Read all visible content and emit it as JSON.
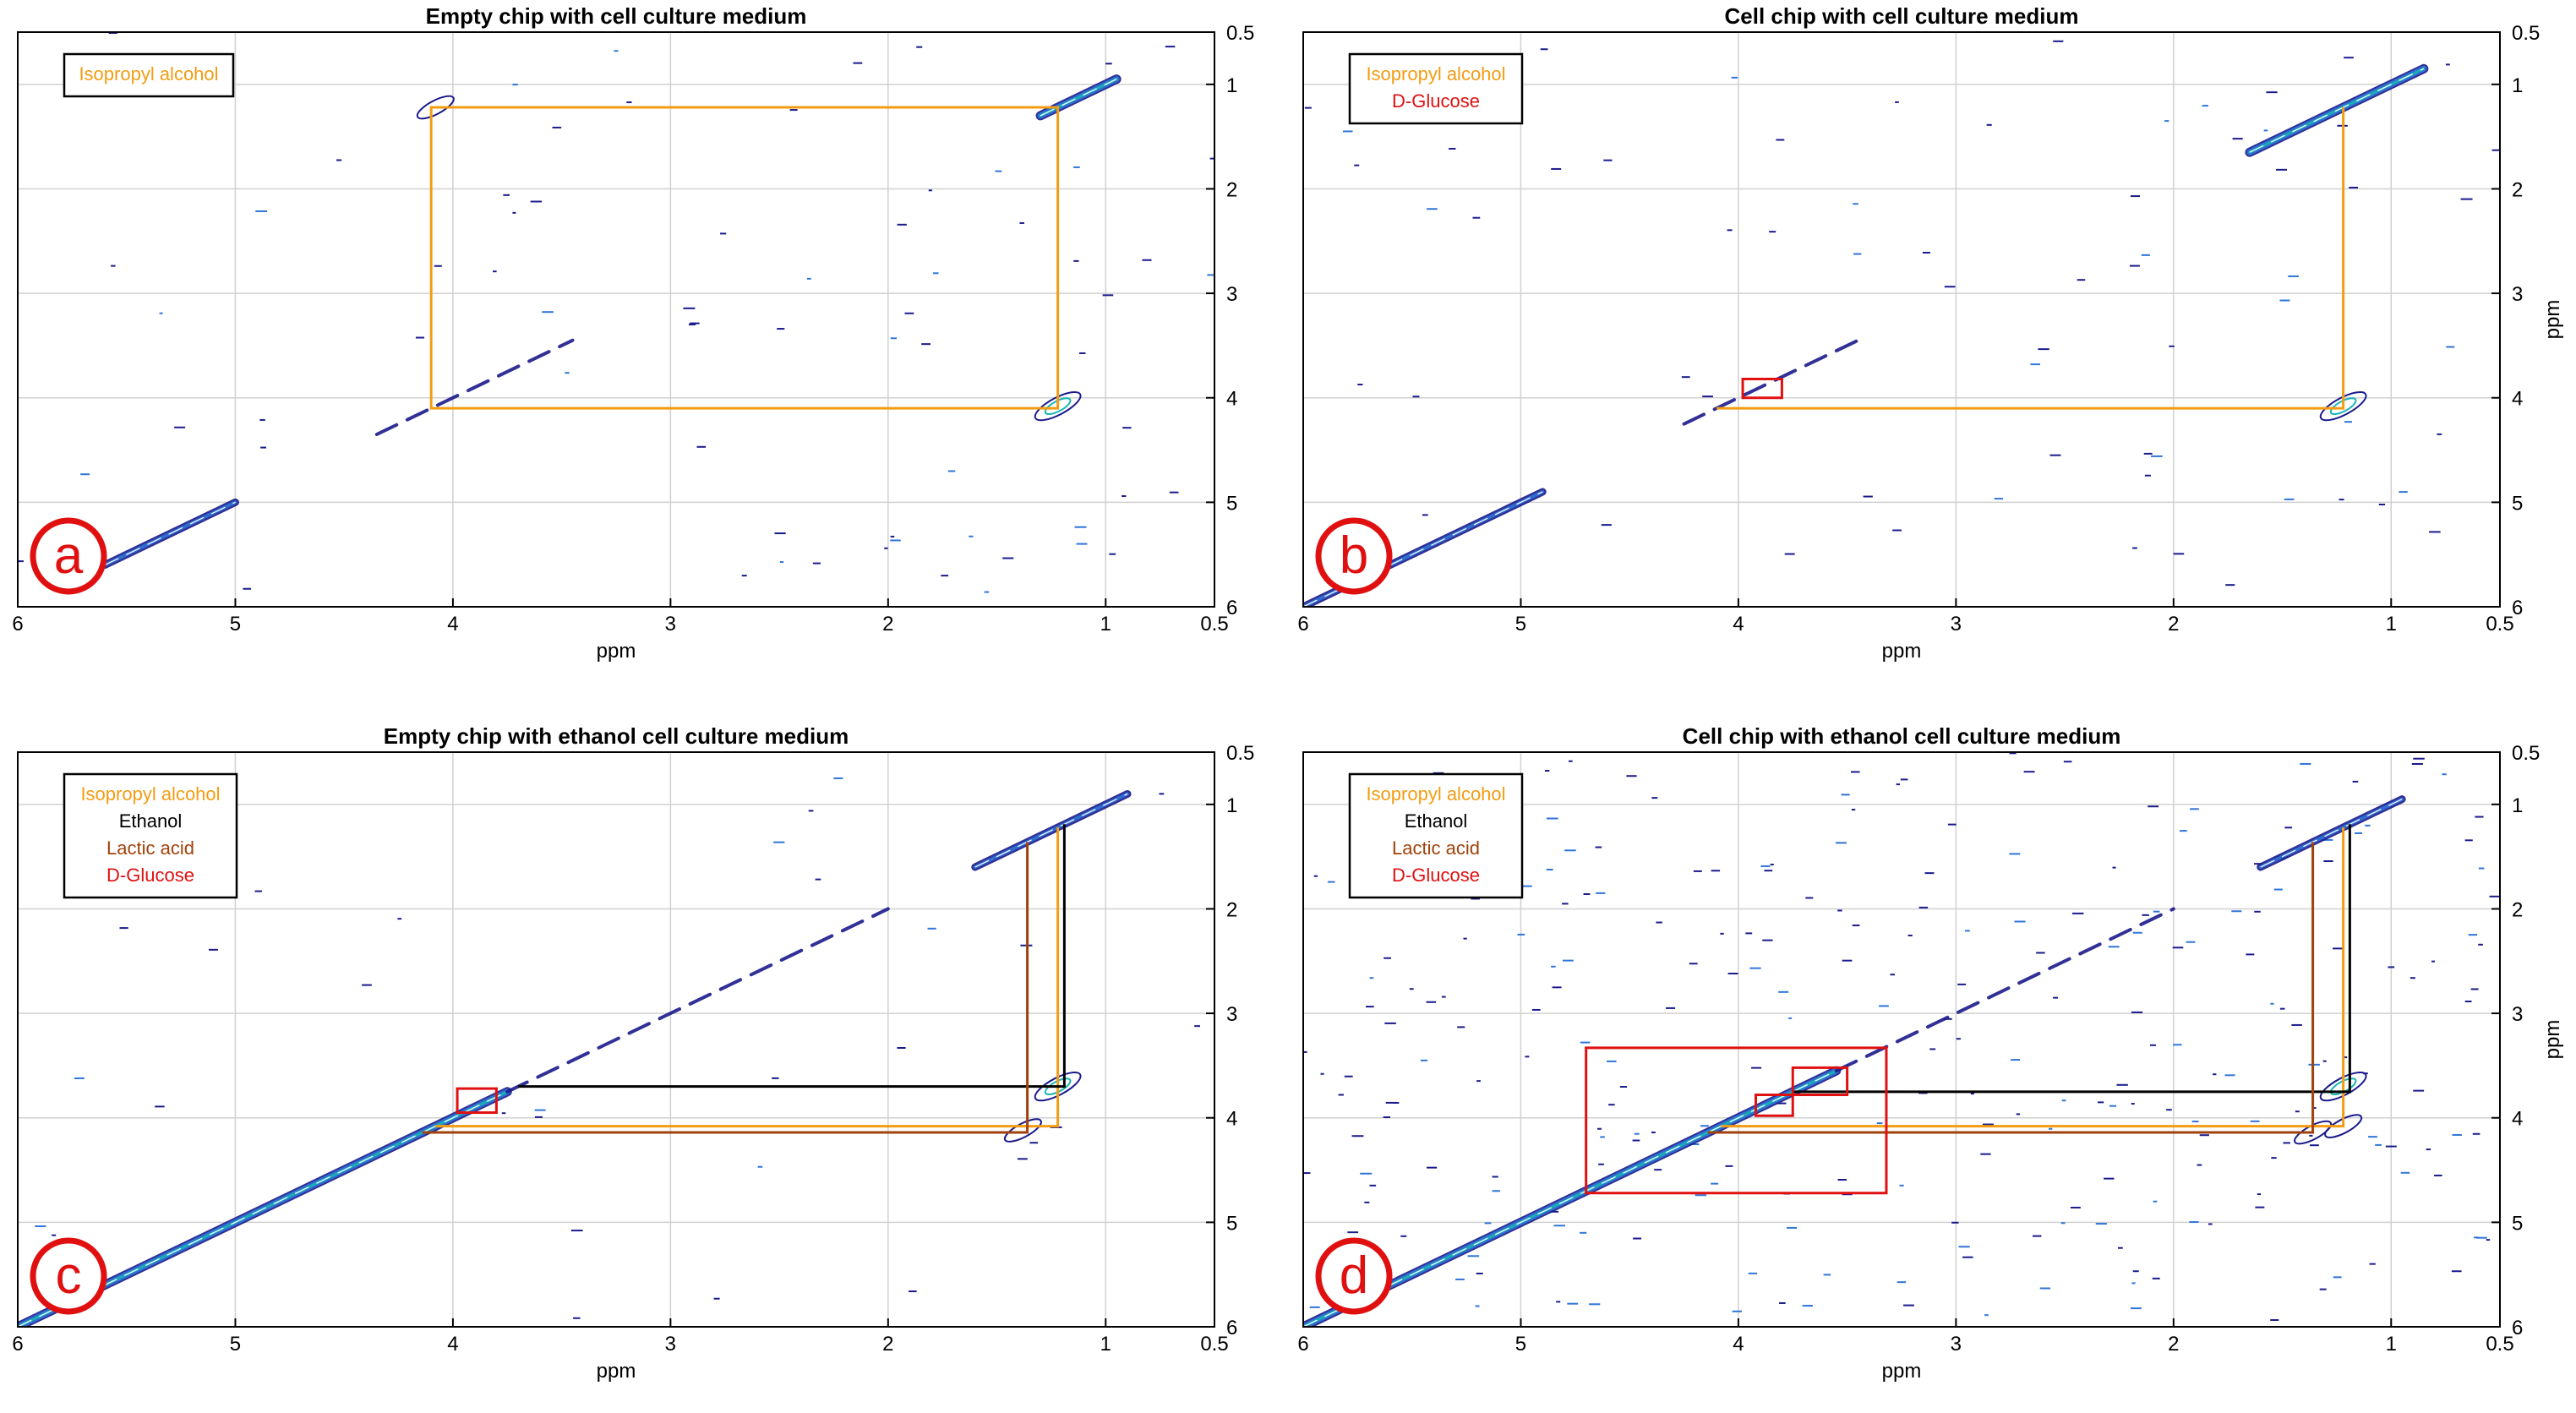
{
  "colors": {
    "isopropyl": "#F39C12",
    "ethanol": "#000000",
    "lactic": "#A0420B",
    "glucose": "#E01010",
    "letter": "#E01010",
    "grid": "#D0D0D0",
    "contour_low": "#1A1A8C",
    "contour_mid": "#2E75D8",
    "contour_high": "#19B4B4"
  },
  "chart_data": [
    {
      "id": "a",
      "type": "contour",
      "title": "Empty chip with cell culture medium",
      "xlabel": "ppm",
      "ylabel": "",
      "xlim": [
        6,
        0.5
      ],
      "ylim": [
        6,
        0.5
      ],
      "x_reversed": true,
      "y_reversed": true,
      "xticks": [
        "6",
        "5",
        "4",
        "3",
        "2",
        "1",
        "0.5"
      ],
      "yticks": [
        "0.5",
        "1",
        "2",
        "3",
        "4",
        "5",
        "6"
      ],
      "grid": true,
      "legend_position": "top-left",
      "legend": [
        {
          "name": "Isopropyl alcohol",
          "color": "#F39C12"
        }
      ],
      "panel_letter": "a",
      "diagonal_peaks": [
        {
          "ppm": [
            5.6,
            5.0
          ],
          "intensity": 2
        },
        {
          "ppm": [
            4.35,
            3.45
          ],
          "intensity": 1
        },
        {
          "ppm": [
            1.3,
            0.95
          ],
          "intensity": 3
        }
      ],
      "cross_peaks": [
        {
          "x": 1.22,
          "y": 4.08,
          "intensity": 2
        },
        {
          "x": 4.08,
          "y": 1.22,
          "intensity": 1
        }
      ],
      "correlations": [
        {
          "compound": "Isopropyl alcohol",
          "x1": 1.22,
          "y1": 1.22,
          "x2": 4.1,
          "y2": 4.1,
          "type": "rect"
        }
      ],
      "highlight_boxes": []
    },
    {
      "id": "b",
      "type": "contour",
      "title": "Cell chip with cell culture medium",
      "xlabel": "ppm",
      "ylabel": "ppm",
      "xlim": [
        6,
        0.5
      ],
      "ylim": [
        6,
        0.5
      ],
      "x_reversed": true,
      "y_reversed": true,
      "xticks": [
        "6",
        "5",
        "4",
        "3",
        "2",
        "1",
        "0.5"
      ],
      "yticks": [
        "0.5",
        "1",
        "2",
        "3",
        "4",
        "5",
        "6"
      ],
      "grid": true,
      "legend_position": "top-left",
      "legend": [
        {
          "name": "Isopropyl alcohol",
          "color": "#F39C12"
        },
        {
          "name": "D-Glucose",
          "color": "#E01010"
        }
      ],
      "panel_letter": "b",
      "diagonal_peaks": [
        {
          "ppm": [
            6.0,
            4.9
          ],
          "intensity": 2
        },
        {
          "ppm": [
            4.25,
            3.45
          ],
          "intensity": 1
        },
        {
          "ppm": [
            1.65,
            0.85
          ],
          "intensity": 3
        }
      ],
      "cross_peaks": [
        {
          "x": 1.22,
          "y": 4.08,
          "intensity": 2
        }
      ],
      "correlations": [
        {
          "compound": "Isopropyl alcohol",
          "x1": 1.22,
          "y1": 1.22,
          "x2": 4.1,
          "y2": 4.1,
          "type": "corner"
        }
      ],
      "highlight_boxes": [
        {
          "compound": "D-Glucose",
          "x": [
            3.98,
            3.8
          ],
          "y": [
            3.82,
            4.0
          ]
        }
      ]
    },
    {
      "id": "c",
      "type": "contour",
      "title": "Empty chip with ethanol cell culture medium",
      "xlabel": "ppm",
      "ylabel": "",
      "xlim": [
        6,
        0.5
      ],
      "ylim": [
        6,
        0.5
      ],
      "x_reversed": true,
      "y_reversed": true,
      "xticks": [
        "6",
        "5",
        "4",
        "3",
        "2",
        "1",
        "0.5"
      ],
      "yticks": [
        "0.5",
        "1",
        "2",
        "3",
        "4",
        "5",
        "6"
      ],
      "grid": true,
      "legend_position": "top-left",
      "legend": [
        {
          "name": "Isopropyl alcohol",
          "color": "#F39C12"
        },
        {
          "name": "Ethanol",
          "color": "#000000"
        },
        {
          "name": "Lactic acid",
          "color": "#A0420B"
        },
        {
          "name": "D-Glucose",
          "color": "#E01010"
        }
      ],
      "panel_letter": "c",
      "diagonal_peaks": [
        {
          "ppm": [
            6.0,
            3.75
          ],
          "intensity": 3
        },
        {
          "ppm": [
            3.75,
            2.0
          ],
          "intensity": 1
        },
        {
          "ppm": [
            1.6,
            0.9
          ],
          "intensity": 2
        }
      ],
      "cross_peaks": [
        {
          "x": 1.22,
          "y": 3.7,
          "intensity": 2
        },
        {
          "x": 1.38,
          "y": 4.12,
          "intensity": 1
        }
      ],
      "correlations": [
        {
          "compound": "Isopropyl alcohol",
          "x1": 1.22,
          "y1": 1.22,
          "x2": 4.08,
          "y2": 4.08,
          "type": "corner"
        },
        {
          "compound": "Ethanol",
          "x1": 1.19,
          "y1": 1.19,
          "x2": 3.7,
          "y2": 3.7,
          "type": "corner"
        },
        {
          "compound": "Lactic acid",
          "x1": 1.36,
          "y1": 1.36,
          "x2": 4.14,
          "y2": 4.14,
          "type": "corner"
        }
      ],
      "highlight_boxes": [
        {
          "compound": "D-Glucose",
          "x": [
            3.98,
            3.8
          ],
          "y": [
            3.72,
            3.95
          ]
        }
      ]
    },
    {
      "id": "d",
      "type": "contour",
      "title": "Cell chip with ethanol cell culture medium",
      "xlabel": "ppm",
      "ylabel": "ppm",
      "xlim": [
        6,
        0.5
      ],
      "ylim": [
        6,
        0.5
      ],
      "x_reversed": true,
      "y_reversed": true,
      "xticks": [
        "6",
        "5",
        "4",
        "3",
        "2",
        "1",
        "0.5"
      ],
      "yticks": [
        "0.5",
        "1",
        "2",
        "3",
        "4",
        "5",
        "6"
      ],
      "grid": true,
      "legend_position": "top-left",
      "legend": [
        {
          "name": "Isopropyl alcohol",
          "color": "#F39C12"
        },
        {
          "name": "Ethanol",
          "color": "#000000"
        },
        {
          "name": "Lactic acid",
          "color": "#A0420B"
        },
        {
          "name": "D-Glucose",
          "color": "#E01010"
        }
      ],
      "panel_letter": "d",
      "diagonal_peaks": [
        {
          "ppm": [
            6.0,
            3.55
          ],
          "intensity": 3
        },
        {
          "ppm": [
            3.55,
            2.0
          ],
          "intensity": 1
        },
        {
          "ppm": [
            1.6,
            0.95
          ],
          "intensity": 2
        }
      ],
      "cross_peaks": [
        {
          "x": 1.22,
          "y": 3.7,
          "intensity": 2
        },
        {
          "x": 1.22,
          "y": 4.08,
          "intensity": 1
        },
        {
          "x": 1.36,
          "y": 4.14,
          "intensity": 1
        }
      ],
      "correlations": [
        {
          "compound": "Isopropyl alcohol",
          "x1": 1.22,
          "y1": 1.22,
          "x2": 4.08,
          "y2": 4.08,
          "type": "corner"
        },
        {
          "compound": "Ethanol",
          "x1": 1.19,
          "y1": 1.19,
          "x2": 3.75,
          "y2": 3.75,
          "type": "corner"
        },
        {
          "compound": "Lactic acid",
          "x1": 1.36,
          "y1": 1.36,
          "x2": 4.14,
          "y2": 4.14,
          "type": "corner"
        }
      ],
      "highlight_boxes": [
        {
          "compound": "D-Glucose",
          "x": [
            4.7,
            3.32
          ],
          "y": [
            3.33,
            4.72
          ]
        },
        {
          "compound": "D-Glucose",
          "x": [
            3.75,
            3.5
          ],
          "y": [
            3.52,
            3.78
          ]
        },
        {
          "compound": "D-Glucose",
          "x": [
            3.92,
            3.75
          ],
          "y": [
            3.78,
            3.98
          ]
        }
      ]
    }
  ]
}
